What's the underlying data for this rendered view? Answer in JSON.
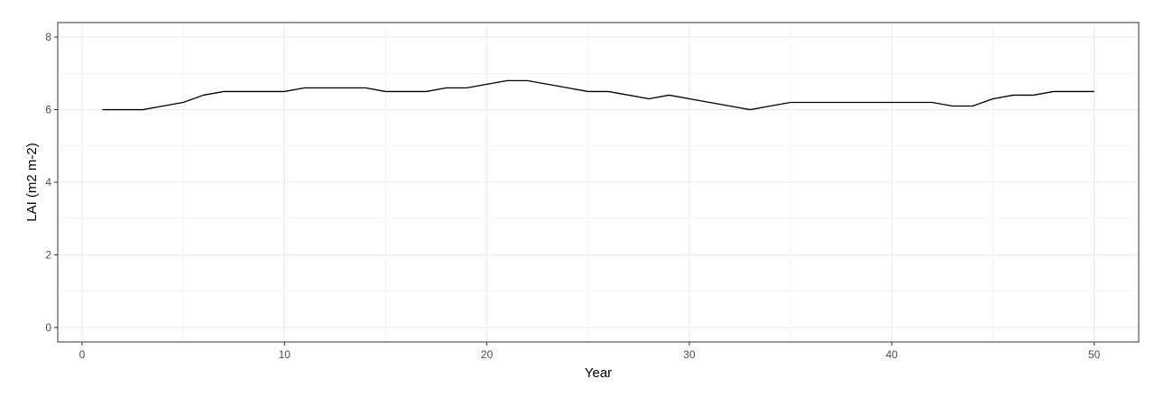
{
  "chart_data": {
    "type": "line",
    "xlabel": "Year",
    "ylabel": "LAI (m2 m-2)",
    "xlim": [
      -1.2,
      52.2
    ],
    "ylim": [
      -0.4,
      8.4
    ],
    "x_ticks": [
      0,
      10,
      20,
      30,
      40,
      50
    ],
    "y_ticks": [
      0,
      2,
      4,
      6,
      8
    ],
    "x_tick_labels": [
      "0",
      "10",
      "20",
      "30",
      "40",
      "50"
    ],
    "y_tick_labels": [
      "0",
      "2",
      "4",
      "6",
      "8"
    ],
    "grid": true,
    "line_color": "#000000",
    "series": [
      {
        "x": [
          1,
          2,
          3,
          4,
          5,
          6,
          7,
          8,
          9,
          10,
          11,
          12,
          13,
          14,
          15,
          16,
          17,
          18,
          19,
          20,
          21,
          22,
          23,
          24,
          25,
          26,
          27,
          28,
          29,
          30,
          31,
          32,
          33,
          34,
          35,
          36,
          37,
          38,
          39,
          40,
          41,
          42,
          43,
          44,
          45,
          46,
          47,
          48,
          49,
          50
        ],
        "values": [
          6.0,
          6.0,
          6.0,
          6.1,
          6.2,
          6.4,
          6.5,
          6.5,
          6.5,
          6.5,
          6.6,
          6.6,
          6.6,
          6.6,
          6.5,
          6.5,
          6.5,
          6.6,
          6.6,
          6.7,
          6.8,
          6.8,
          6.7,
          6.6,
          6.5,
          6.5,
          6.4,
          6.3,
          6.4,
          6.3,
          6.2,
          6.1,
          6.0,
          6.1,
          6.2,
          6.2,
          6.2,
          6.2,
          6.2,
          6.2,
          6.2,
          6.2,
          6.1,
          6.1,
          6.3,
          6.4,
          6.4,
          6.5,
          6.5,
          6.5
        ]
      }
    ]
  }
}
